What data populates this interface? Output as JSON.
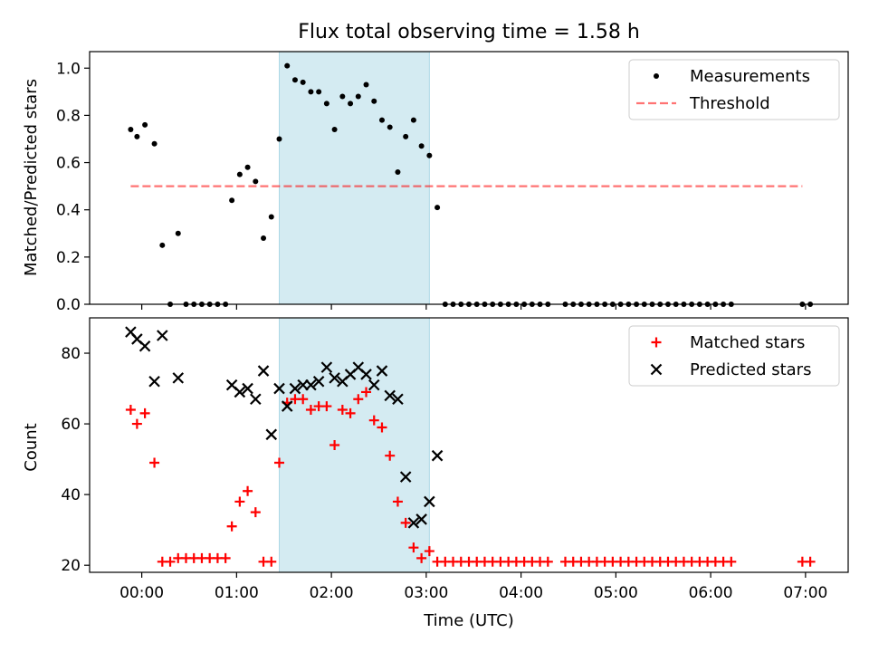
{
  "title": "Flux total observing time = 1.58 h",
  "colors": {
    "shade": "#add8e6",
    "threshold": "#ff0000",
    "matched": "#ff0000",
    "predicted": "#000000",
    "measurements": "#000000"
  },
  "chart_data": [
    {
      "type": "scatter",
      "title": "Flux total observing time = 1.58 h",
      "xlabel": "",
      "ylabel": "Matched/Predicted stars",
      "xlim": [
        "23:27",
        "07:27"
      ],
      "ylim": [
        0,
        1.07
      ],
      "x_ticks": [
        "00:00",
        "01:00",
        "02:00",
        "03:00",
        "04:00",
        "05:00",
        "06:00",
        "07:00"
      ],
      "y_ticks": [
        "0.0",
        "0.2",
        "0.4",
        "0.6",
        "0.8",
        "1.0"
      ],
      "shaded_span": [
        "01:27",
        "03:02"
      ],
      "legend_position": "upper right",
      "series": [
        {
          "name": "Measurements",
          "style": "dots",
          "x": [
            "23:53",
            "23:57",
            "00:02",
            "00:08",
            "00:13",
            "00:18",
            "00:23",
            "00:28",
            "00:33",
            "00:38",
            "00:43",
            "00:48",
            "00:53",
            "00:57",
            "01:02",
            "01:07",
            "01:12",
            "01:17",
            "01:22",
            "01:27",
            "01:32",
            "01:37",
            "01:42",
            "01:47",
            "01:52",
            "01:57",
            "02:02",
            "02:07",
            "02:12",
            "02:17",
            "02:22",
            "02:27",
            "02:32",
            "02:37",
            "02:42",
            "02:47",
            "02:52",
            "02:57",
            "03:02",
            "03:07",
            "03:12",
            "03:17",
            "03:22",
            "03:27",
            "03:32",
            "03:37",
            "03:42",
            "03:47",
            "03:52",
            "03:57",
            "04:02",
            "04:07",
            "04:12",
            "04:17",
            "04:28",
            "04:33",
            "04:38",
            "04:43",
            "04:48",
            "04:53",
            "04:58",
            "05:03",
            "05:08",
            "05:13",
            "05:18",
            "05:23",
            "05:28",
            "05:33",
            "05:38",
            "05:43",
            "05:48",
            "05:53",
            "05:58",
            "06:03",
            "06:08",
            "06:13",
            "06:58",
            "07:03"
          ],
          "y": [
            0.74,
            0.71,
            0.76,
            0.68,
            0.25,
            0.0,
            0.3,
            0.0,
            0.0,
            0.0,
            0.0,
            0.0,
            0.0,
            0.44,
            0.55,
            0.58,
            0.52,
            0.28,
            0.37,
            0.7,
            1.01,
            0.95,
            0.94,
            0.9,
            0.9,
            0.85,
            0.74,
            0.88,
            0.85,
            0.88,
            0.93,
            0.86,
            0.78,
            0.75,
            0.56,
            0.71,
            0.78,
            0.67,
            0.63,
            0.41,
            0.0,
            0.0,
            0.0,
            0.0,
            0.0,
            0.0,
            0.0,
            0.0,
            0.0,
            0.0,
            0.0,
            0.0,
            0.0,
            0.0,
            0.0,
            0.0,
            0.0,
            0.0,
            0.0,
            0.0,
            0.0,
            0.0,
            0.0,
            0.0,
            0.0,
            0.0,
            0.0,
            0.0,
            0.0,
            0.0,
            0.0,
            0.0,
            0.0,
            0.0,
            0.0,
            0.0,
            0.0,
            0.0
          ]
        },
        {
          "name": "Threshold",
          "style": "dashed-line",
          "x": [
            "23:53",
            "06:58"
          ],
          "y": [
            0.5,
            0.5
          ]
        }
      ]
    },
    {
      "type": "scatter",
      "title": "",
      "xlabel": "Time (UTC)",
      "ylabel": "Count",
      "xlim": [
        "23:27",
        "07:27"
      ],
      "ylim": [
        18,
        90
      ],
      "x_ticks": [
        "00:00",
        "01:00",
        "02:00",
        "03:00",
        "04:00",
        "05:00",
        "06:00",
        "07:00"
      ],
      "y_ticks": [
        "20",
        "40",
        "60",
        "80"
      ],
      "shaded_span": [
        "01:27",
        "03:02"
      ],
      "legend_position": "upper right",
      "series": [
        {
          "name": "Matched stars",
          "marker": "plus",
          "x": [
            "23:53",
            "23:57",
            "00:02",
            "00:08",
            "00:13",
            "00:18",
            "00:23",
            "00:28",
            "00:33",
            "00:38",
            "00:43",
            "00:48",
            "00:53",
            "00:57",
            "01:02",
            "01:07",
            "01:12",
            "01:17",
            "01:22",
            "01:27",
            "01:32",
            "01:37",
            "01:42",
            "01:47",
            "01:52",
            "01:57",
            "02:02",
            "02:07",
            "02:12",
            "02:17",
            "02:22",
            "02:27",
            "02:32",
            "02:37",
            "02:42",
            "02:47",
            "02:52",
            "02:57",
            "03:02",
            "03:07",
            "03:12",
            "03:17",
            "03:22",
            "03:27",
            "03:32",
            "03:37",
            "03:42",
            "03:47",
            "03:52",
            "03:57",
            "04:02",
            "04:07",
            "04:12",
            "04:17",
            "04:28",
            "04:33",
            "04:38",
            "04:43",
            "04:48",
            "04:53",
            "04:58",
            "05:03",
            "05:08",
            "05:13",
            "05:18",
            "05:23",
            "05:28",
            "05:33",
            "05:38",
            "05:43",
            "05:48",
            "05:53",
            "05:58",
            "06:03",
            "06:08",
            "06:13",
            "06:58",
            "07:03"
          ],
          "y": [
            64,
            60,
            63,
            49,
            21,
            21,
            22,
            22,
            22,
            22,
            22,
            22,
            22,
            31,
            38,
            41,
            35,
            21,
            21,
            49,
            66,
            67,
            67,
            64,
            65,
            65,
            54,
            64,
            63,
            67,
            69,
            61,
            59,
            51,
            38,
            32,
            25,
            22,
            24,
            21,
            21,
            21,
            21,
            21,
            21,
            21,
            21,
            21,
            21,
            21,
            21,
            21,
            21,
            21,
            21,
            21,
            21,
            21,
            21,
            21,
            21,
            21,
            21,
            21,
            21,
            21,
            21,
            21,
            21,
            21,
            21,
            21,
            21,
            21,
            21,
            21,
            21,
            21
          ]
        },
        {
          "name": "Predicted stars",
          "marker": "x",
          "x": [
            "23:53",
            "23:57",
            "00:02",
            "00:08",
            "00:13",
            "00:23",
            "00:57",
            "01:02",
            "01:07",
            "01:12",
            "01:17",
            "01:22",
            "01:27",
            "01:32",
            "01:37",
            "01:42",
            "01:47",
            "01:52",
            "01:57",
            "02:02",
            "02:07",
            "02:12",
            "02:17",
            "02:22",
            "02:27",
            "02:32",
            "02:37",
            "02:42",
            "02:47",
            "02:52",
            "02:57",
            "03:02",
            "03:07"
          ],
          "y": [
            86,
            84,
            82,
            72,
            85,
            73,
            71,
            69,
            70,
            67,
            75,
            57,
            70,
            65,
            70,
            71,
            71,
            72,
            76,
            73,
            72,
            74,
            76,
            74,
            71,
            75,
            68,
            67,
            45,
            32,
            33,
            38,
            51
          ]
        }
      ]
    }
  ]
}
